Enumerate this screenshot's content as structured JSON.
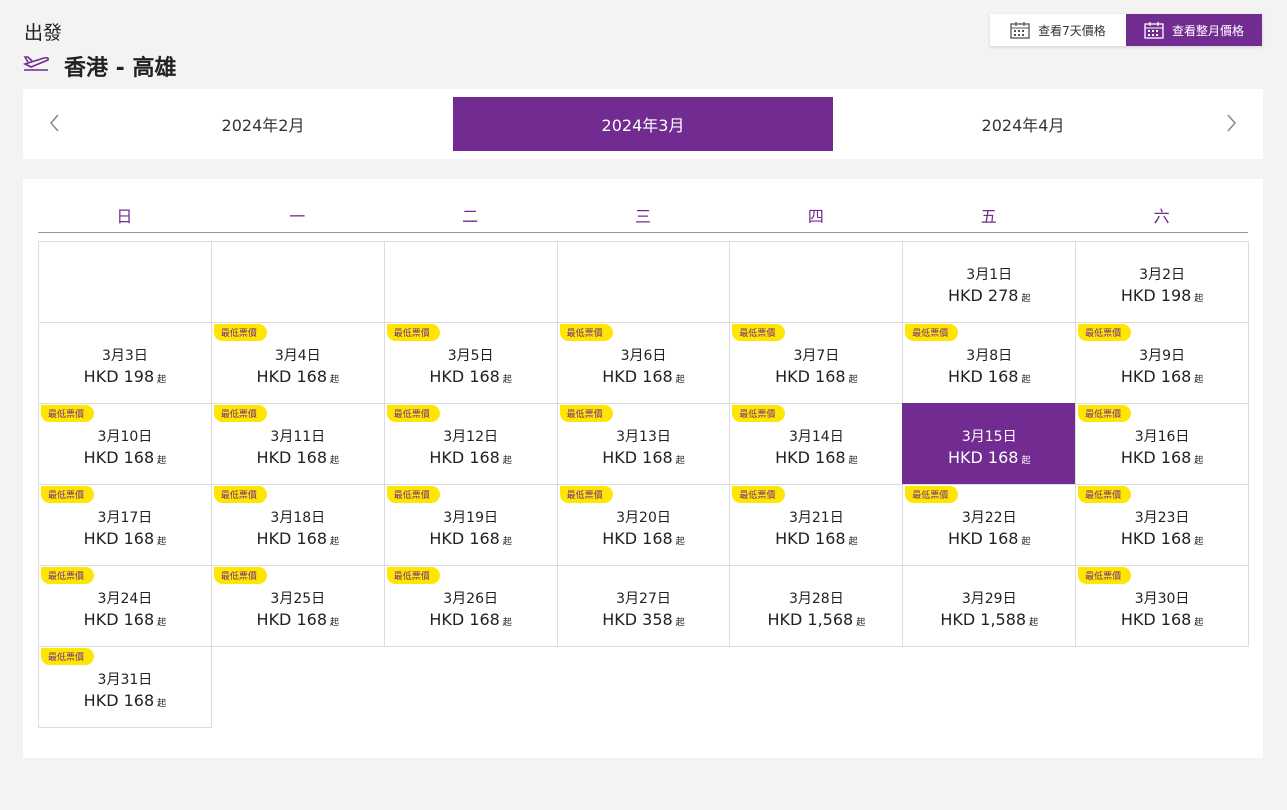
{
  "header": {
    "label": "出發",
    "route": "香港 - 高雄"
  },
  "view_buttons": [
    {
      "label": "查看7天價格",
      "active": false
    },
    {
      "label": "查看整月價格",
      "active": true
    }
  ],
  "months": [
    {
      "label": "2024年2月",
      "active": false
    },
    {
      "label": "2024年3月",
      "active": true
    },
    {
      "label": "2024年4月",
      "active": false
    }
  ],
  "calendar": {
    "weekdays": [
      "日",
      "一",
      "二",
      "三",
      "四",
      "五",
      "六"
    ],
    "badge_text": "最低票價",
    "price_suffix": "起",
    "days": [
      {
        "date": "3月1日",
        "price": "HKD 278",
        "lowest": false,
        "selected": false
      },
      {
        "date": "3月2日",
        "price": "HKD 198",
        "lowest": false,
        "selected": false
      },
      {
        "date": "3月3日",
        "price": "HKD 198",
        "lowest": false,
        "selected": false
      },
      {
        "date": "3月4日",
        "price": "HKD 168",
        "lowest": true,
        "selected": false
      },
      {
        "date": "3月5日",
        "price": "HKD 168",
        "lowest": true,
        "selected": false
      },
      {
        "date": "3月6日",
        "price": "HKD 168",
        "lowest": true,
        "selected": false
      },
      {
        "date": "3月7日",
        "price": "HKD 168",
        "lowest": true,
        "selected": false
      },
      {
        "date": "3月8日",
        "price": "HKD 168",
        "lowest": true,
        "selected": false
      },
      {
        "date": "3月9日",
        "price": "HKD 168",
        "lowest": true,
        "selected": false
      },
      {
        "date": "3月10日",
        "price": "HKD 168",
        "lowest": true,
        "selected": false
      },
      {
        "date": "3月11日",
        "price": "HKD 168",
        "lowest": true,
        "selected": false
      },
      {
        "date": "3月12日",
        "price": "HKD 168",
        "lowest": true,
        "selected": false
      },
      {
        "date": "3月13日",
        "price": "HKD 168",
        "lowest": true,
        "selected": false
      },
      {
        "date": "3月14日",
        "price": "HKD 168",
        "lowest": true,
        "selected": false
      },
      {
        "date": "3月15日",
        "price": "HKD 168",
        "lowest": false,
        "selected": true
      },
      {
        "date": "3月16日",
        "price": "HKD 168",
        "lowest": true,
        "selected": false
      },
      {
        "date": "3月17日",
        "price": "HKD 168",
        "lowest": true,
        "selected": false
      },
      {
        "date": "3月18日",
        "price": "HKD 168",
        "lowest": true,
        "selected": false
      },
      {
        "date": "3月19日",
        "price": "HKD 168",
        "lowest": true,
        "selected": false
      },
      {
        "date": "3月20日",
        "price": "HKD 168",
        "lowest": true,
        "selected": false
      },
      {
        "date": "3月21日",
        "price": "HKD 168",
        "lowest": true,
        "selected": false
      },
      {
        "date": "3月22日",
        "price": "HKD 168",
        "lowest": true,
        "selected": false
      },
      {
        "date": "3月23日",
        "price": "HKD 168",
        "lowest": true,
        "selected": false
      },
      {
        "date": "3月24日",
        "price": "HKD 168",
        "lowest": true,
        "selected": false
      },
      {
        "date": "3月25日",
        "price": "HKD 168",
        "lowest": true,
        "selected": false
      },
      {
        "date": "3月26日",
        "price": "HKD 168",
        "lowest": true,
        "selected": false
      },
      {
        "date": "3月27日",
        "price": "HKD 358",
        "lowest": false,
        "selected": false
      },
      {
        "date": "3月28日",
        "price": "HKD 1,568",
        "lowest": false,
        "selected": false
      },
      {
        "date": "3月29日",
        "price": "HKD 1,588",
        "lowest": false,
        "selected": false
      },
      {
        "date": "3月30日",
        "price": "HKD 168",
        "lowest": true,
        "selected": false
      },
      {
        "date": "3月31日",
        "price": "HKD 168",
        "lowest": true,
        "selected": false
      }
    ]
  }
}
